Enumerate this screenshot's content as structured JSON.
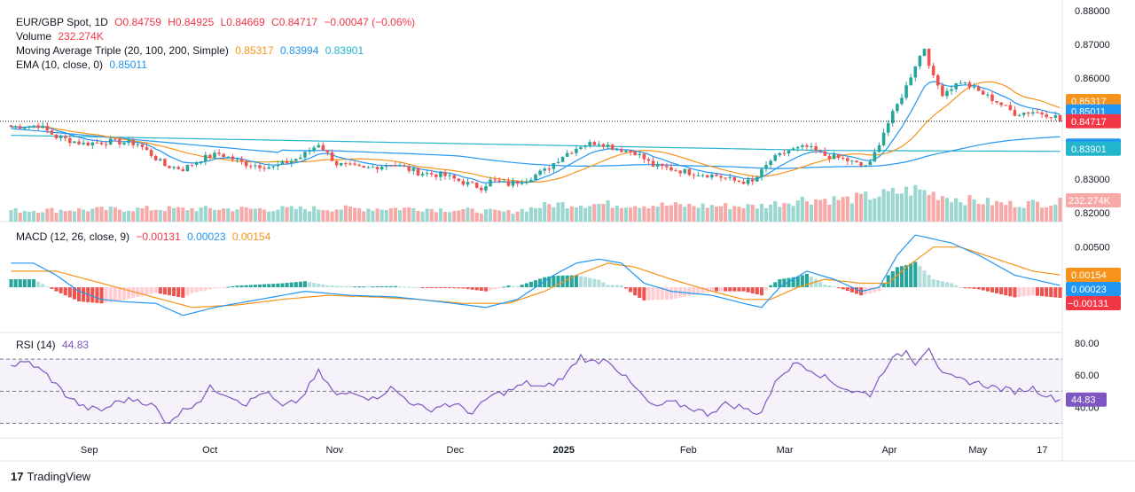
{
  "header": {
    "symbol": "EUR/GBP Spot, 1D",
    "open": "O0.84759",
    "high": "H0.84925",
    "low": "L0.84669",
    "close": "C0.84717",
    "change": "−0.00047 (−0.06%)"
  },
  "legend": {
    "volume_label": "Volume",
    "volume_value": "232.274K",
    "ma_label": "Moving Average Triple (20, 100, 200, Simple)",
    "ma20": "0.85317",
    "ma100": "0.83994",
    "ma200": "0.83901",
    "ema_label": "EMA (10, close, 0)",
    "ema_value": "0.85011",
    "macd_label": "MACD (12, 26, close, 9)",
    "macd_hist": "−0.00131",
    "macd_line": "0.00023",
    "macd_signal": "0.00154",
    "rsi_label": "RSI (14)",
    "rsi_value": "44.83"
  },
  "colors": {
    "up": "#26a69a",
    "down": "#ef5350",
    "ma20": "#f7931a",
    "ema10": "#2196f3",
    "ma100": "#2196f3",
    "ma200": "#22b5cc",
    "macd": "#2196f3",
    "signal": "#f7931a",
    "rsi": "#7e57c2"
  },
  "branding": "TradingView",
  "chart_data": [
    {
      "type": "candlestick",
      "title": "EUR/GBP Spot, 1D",
      "x_ticks": [
        "Sep",
        "Oct",
        "Nov",
        "Dec",
        "2025",
        "Feb",
        "Mar",
        "Apr",
        "May",
        "17"
      ],
      "y_ticks": [
        "0.88000",
        "0.87000",
        "0.86000",
        "0.85000",
        "0.84000",
        "0.83000",
        "0.82000"
      ],
      "ylim": [
        0.82,
        0.88
      ],
      "last_price": "0.84717",
      "price_tags": [
        {
          "text": "0.85317",
          "value": 0.85317,
          "color": "#f7931a"
        },
        {
          "text": "0.85011",
          "value": 0.85011,
          "color": "#2196f3"
        },
        {
          "text": "0.84717",
          "value": 0.84717,
          "color": "#f23645"
        },
        {
          "text": "0.83994",
          "value": 0.83994,
          "color": "#2196f3"
        },
        {
          "text": "0.83901",
          "value": 0.83901,
          "color": "#22b5cc"
        }
      ],
      "volume_tag": "232.274K",
      "close_anchors": [
        [
          0,
          0.8455
        ],
        [
          6,
          0.846
        ],
        [
          10,
          0.8425
        ],
        [
          16,
          0.8405
        ],
        [
          22,
          0.8412
        ],
        [
          28,
          0.8405
        ],
        [
          34,
          0.834
        ],
        [
          38,
          0.833
        ],
        [
          42,
          0.836
        ],
        [
          46,
          0.8375
        ],
        [
          52,
          0.8345
        ],
        [
          58,
          0.8335
        ],
        [
          64,
          0.8365
        ],
        [
          68,
          0.8405
        ],
        [
          72,
          0.8345
        ],
        [
          78,
          0.833
        ],
        [
          84,
          0.8345
        ],
        [
          90,
          0.832
        ],
        [
          96,
          0.831
        ],
        [
          100,
          0.829
        ],
        [
          104,
          0.8275
        ],
        [
          106,
          0.8295
        ],
        [
          110,
          0.8285
        ],
        [
          114,
          0.83
        ],
        [
          118,
          0.8325
        ],
        [
          122,
          0.837
        ],
        [
          126,
          0.84
        ],
        [
          130,
          0.841
        ],
        [
          134,
          0.839
        ],
        [
          138,
          0.838
        ],
        [
          142,
          0.834
        ],
        [
          146,
          0.833
        ],
        [
          150,
          0.832
        ],
        [
          156,
          0.831
        ],
        [
          160,
          0.8295
        ],
        [
          164,
          0.829
        ],
        [
          168,
          0.8355
        ],
        [
          172,
          0.8385
        ],
        [
          176,
          0.8395
        ],
        [
          180,
          0.837
        ],
        [
          184,
          0.836
        ],
        [
          188,
          0.834
        ],
        [
          190,
          0.8345
        ],
        [
          193,
          0.844
        ],
        [
          196,
          0.852
        ],
        [
          198,
          0.8575
        ],
        [
          200,
          0.864
        ],
        [
          202,
          0.869
        ],
        [
          204,
          0.86
        ],
        [
          206,
          0.8555
        ],
        [
          210,
          0.859
        ],
        [
          214,
          0.856
        ],
        [
          218,
          0.853
        ],
        [
          222,
          0.8495
        ],
        [
          226,
          0.85
        ],
        [
          230,
          0.849
        ],
        [
          232,
          0.848
        ]
      ],
      "volume_anchors": [
        [
          0,
          0.35
        ],
        [
          30,
          0.4
        ],
        [
          60,
          0.4
        ],
        [
          90,
          0.42
        ],
        [
          110,
          0.3
        ],
        [
          120,
          0.55
        ],
        [
          130,
          0.55
        ],
        [
          150,
          0.5
        ],
        [
          165,
          0.48
        ],
        [
          175,
          0.7
        ],
        [
          185,
          0.7
        ],
        [
          193,
          0.85
        ],
        [
          200,
          1.0
        ],
        [
          210,
          0.7
        ],
        [
          220,
          0.55
        ],
        [
          232,
          0.6
        ]
      ]
    },
    {
      "type": "line",
      "title": "MACD (12, 26, close, 9)",
      "y_ticks": [
        "0.00500"
      ],
      "ylim": [
        -0.0055,
        0.0075
      ],
      "tags": [
        {
          "text": "0.00154",
          "value": 0.00154,
          "color": "#f7931a"
        },
        {
          "text": "0.00023",
          "value": 0.00023,
          "color": "#2196f3"
        },
        {
          "text": "−0.00131",
          "value": -0.00131,
          "color": "#f23645"
        }
      ],
      "macd_anchors": [
        [
          0,
          0.003
        ],
        [
          5,
          0.003
        ],
        [
          10,
          0.0015
        ],
        [
          15,
          -0.0005
        ],
        [
          20,
          -0.0015
        ],
        [
          25,
          -0.0018
        ],
        [
          32,
          -0.002
        ],
        [
          38,
          -0.0035
        ],
        [
          45,
          -0.0025
        ],
        [
          55,
          -0.0015
        ],
        [
          65,
          -0.0005
        ],
        [
          75,
          -0.001
        ],
        [
          85,
          -0.0012
        ],
        [
          95,
          -0.0018
        ],
        [
          105,
          -0.0025
        ],
        [
          112,
          -0.0015
        ],
        [
          120,
          0.0015
        ],
        [
          125,
          0.003
        ],
        [
          130,
          0.0035
        ],
        [
          135,
          0.003
        ],
        [
          140,
          0.0005
        ],
        [
          146,
          -0.0005
        ],
        [
          155,
          -0.001
        ],
        [
          162,
          -0.002
        ],
        [
          166,
          -0.0025
        ],
        [
          170,
          0.0
        ],
        [
          176,
          0.002
        ],
        [
          182,
          0.001
        ],
        [
          188,
          -0.0005
        ],
        [
          192,
          0.0
        ],
        [
          196,
          0.004
        ],
        [
          200,
          0.0065
        ],
        [
          204,
          0.006
        ],
        [
          208,
          0.0055
        ],
        [
          214,
          0.004
        ],
        [
          222,
          0.0015
        ],
        [
          232,
          0.00023
        ]
      ],
      "signal_anchors": [
        [
          0,
          0.002
        ],
        [
          10,
          0.002
        ],
        [
          20,
          0.0005
        ],
        [
          30,
          -0.001
        ],
        [
          40,
          -0.0025
        ],
        [
          50,
          -0.0022
        ],
        [
          60,
          -0.0015
        ],
        [
          70,
          -0.001
        ],
        [
          80,
          -0.0012
        ],
        [
          90,
          -0.0015
        ],
        [
          100,
          -0.002
        ],
        [
          110,
          -0.002
        ],
        [
          118,
          -0.0005
        ],
        [
          125,
          0.0015
        ],
        [
          132,
          0.003
        ],
        [
          138,
          0.0025
        ],
        [
          146,
          0.001
        ],
        [
          155,
          -0.0005
        ],
        [
          162,
          -0.0015
        ],
        [
          168,
          -0.0015
        ],
        [
          174,
          0.0
        ],
        [
          180,
          0.001
        ],
        [
          188,
          0.0005
        ],
        [
          194,
          0.0005
        ],
        [
          198,
          0.0025
        ],
        [
          204,
          0.005
        ],
        [
          210,
          0.005
        ],
        [
          218,
          0.0035
        ],
        [
          226,
          0.002
        ],
        [
          232,
          0.00154
        ]
      ]
    },
    {
      "type": "line",
      "title": "RSI (14)",
      "y_ticks": [
        "80.00",
        "60.00",
        "40.00"
      ],
      "ylim": [
        22,
        85
      ],
      "bands": [
        70,
        50,
        30
      ],
      "tag": {
        "text": "44.83",
        "value": 44.83
      },
      "rsi_anchors": [
        [
          0,
          66
        ],
        [
          4,
          68
        ],
        [
          8,
          60
        ],
        [
          12,
          48
        ],
        [
          16,
          40
        ],
        [
          20,
          38
        ],
        [
          24,
          44
        ],
        [
          28,
          45
        ],
        [
          32,
          40
        ],
        [
          34,
          30
        ],
        [
          38,
          38
        ],
        [
          42,
          45
        ],
        [
          44,
          52
        ],
        [
          48,
          48
        ],
        [
          52,
          42
        ],
        [
          56,
          50
        ],
        [
          60,
          40
        ],
        [
          64,
          45
        ],
        [
          68,
          62
        ],
        [
          72,
          47
        ],
        [
          76,
          50
        ],
        [
          80,
          45
        ],
        [
          84,
          52
        ],
        [
          88,
          44
        ],
        [
          92,
          38
        ],
        [
          96,
          42
        ],
        [
          100,
          40
        ],
        [
          102,
          36
        ],
        [
          106,
          47
        ],
        [
          110,
          50
        ],
        [
          114,
          55
        ],
        [
          118,
          52
        ],
        [
          122,
          58
        ],
        [
          126,
          72
        ],
        [
          128,
          68
        ],
        [
          132,
          70
        ],
        [
          136,
          58
        ],
        [
          138,
          52
        ],
        [
          142,
          40
        ],
        [
          146,
          43
        ],
        [
          150,
          40
        ],
        [
          154,
          36
        ],
        [
          158,
          42
        ],
        [
          162,
          40
        ],
        [
          164,
          36
        ],
        [
          166,
          38
        ],
        [
          170,
          60
        ],
        [
          174,
          68
        ],
        [
          178,
          62
        ],
        [
          182,
          55
        ],
        [
          186,
          50
        ],
        [
          190,
          48
        ],
        [
          194,
          68
        ],
        [
          198,
          75
        ],
        [
          200,
          68
        ],
        [
          203,
          78
        ],
        [
          206,
          60
        ],
        [
          210,
          57
        ],
        [
          214,
          55
        ],
        [
          218,
          52
        ],
        [
          222,
          50
        ],
        [
          226,
          52
        ],
        [
          230,
          46
        ],
        [
          232,
          44.83
        ]
      ]
    }
  ]
}
